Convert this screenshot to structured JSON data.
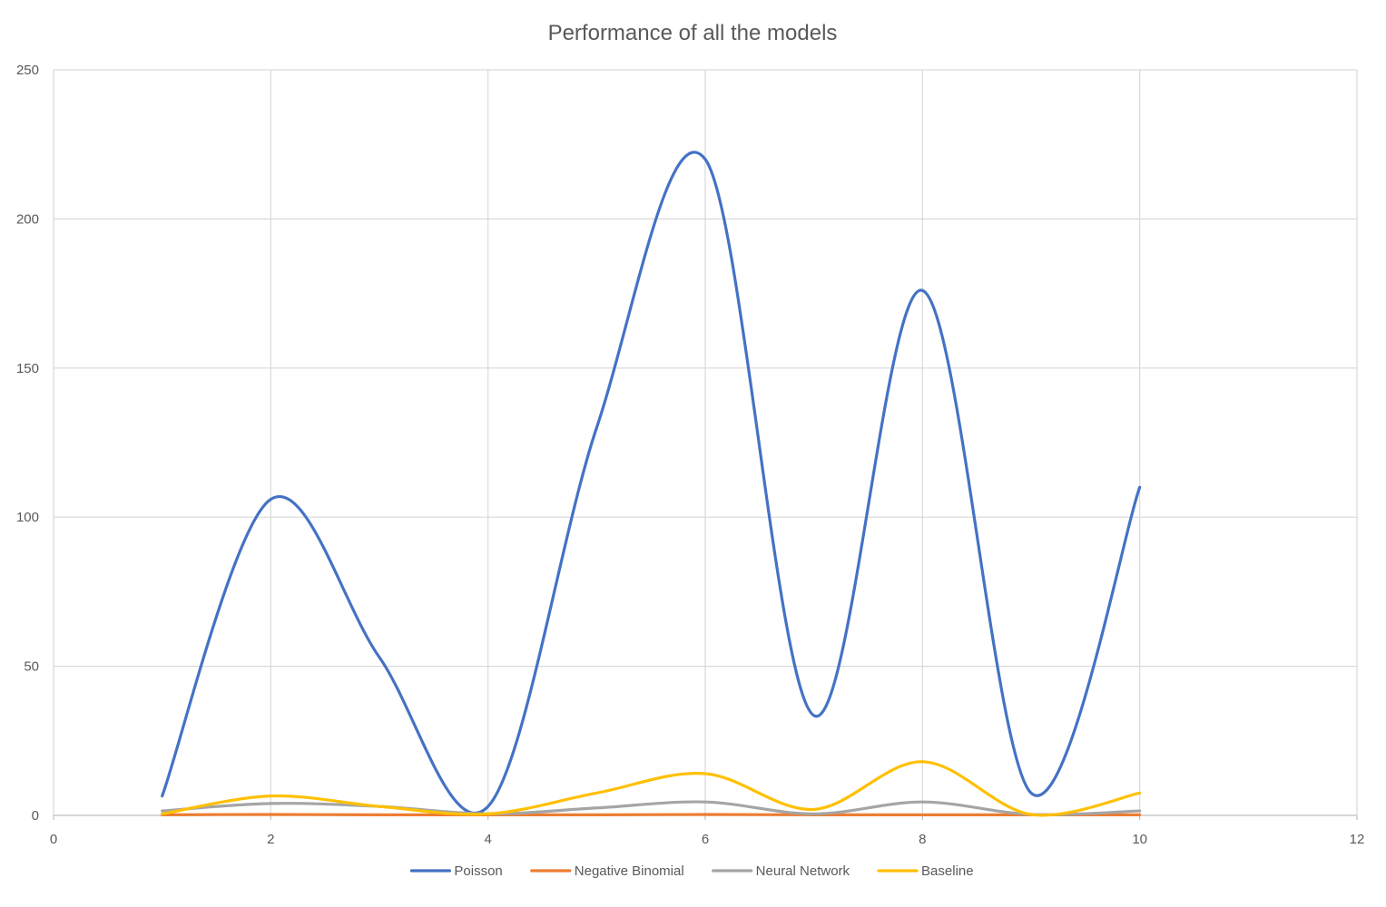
{
  "chart_data": {
    "type": "line",
    "title": "Performance  of all the models",
    "xlabel": "",
    "ylabel": "",
    "xlim": [
      0,
      12
    ],
    "ylim": [
      0,
      250
    ],
    "x_ticks": [
      0,
      2,
      4,
      6,
      8,
      10,
      12
    ],
    "y_ticks": [
      0,
      50,
      100,
      150,
      200,
      250
    ],
    "grid": true,
    "smooth": true,
    "legend_position": "bottom",
    "x": [
      1,
      2,
      3,
      4,
      5,
      6,
      7,
      8,
      9,
      10
    ],
    "series": [
      {
        "name": "Poisson",
        "color": "#4472C4",
        "values": [
          6.5,
          106,
          53,
          3,
          130,
          220,
          33.5,
          176,
          7.5,
          110
        ]
      },
      {
        "name": "Negative Binomial",
        "color": "#ED7D31",
        "values": [
          0.2,
          0.3,
          0.2,
          0.2,
          0.2,
          0.3,
          0.2,
          0.2,
          0.2,
          0.2
        ]
      },
      {
        "name": "Neural Network",
        "color": "#A5A5A5",
        "values": [
          1.5,
          4,
          3,
          0.5,
          2.5,
          4.5,
          0.5,
          4.5,
          0.3,
          1.5
        ]
      },
      {
        "name": "Baseline",
        "color": "#FFC000",
        "values": [
          0.5,
          6.5,
          3,
          0.5,
          7.5,
          14,
          2,
          18,
          0.3,
          7.5
        ]
      }
    ]
  }
}
